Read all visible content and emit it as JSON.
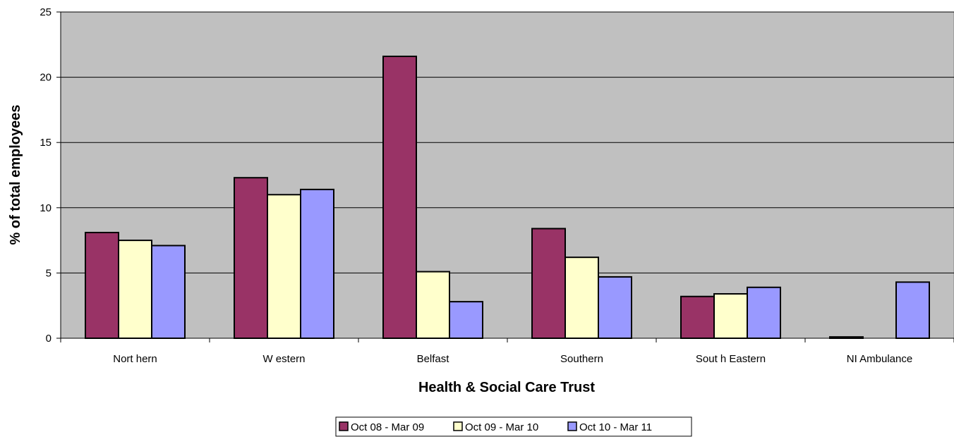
{
  "chart_data": {
    "type": "bar",
    "categories": [
      "Northern",
      "Western",
      "Belfast",
      "Southern",
      "South Eastern",
      "NI Ambulance"
    ],
    "category_labels": [
      "Nort hern",
      "W estern",
      "Belfast",
      "Southern",
      "Sout h Eastern",
      "NI Ambulance"
    ],
    "series": [
      {
        "name": "Oct 08 - Mar 09",
        "color": "#993366",
        "values": [
          8.1,
          12.3,
          21.6,
          8.4,
          3.2,
          0.1
        ]
      },
      {
        "name": "Oct 09 - Mar 10",
        "color": "#FFFFCC",
        "values": [
          7.5,
          11.0,
          5.1,
          6.2,
          3.4,
          0
        ]
      },
      {
        "name": "Oct 10 - Mar 11",
        "color": "#9999FF",
        "values": [
          7.1,
          11.4,
          2.8,
          4.7,
          3.9,
          4.3
        ]
      }
    ],
    "xlabel": "Health & Social Care Trust",
    "ylabel": "% of total employees",
    "ylim": [
      0,
      25
    ],
    "yticks": [
      0,
      5,
      10,
      15,
      20,
      25
    ],
    "grid": true,
    "plot_background": "#C0C0C0",
    "legend_position": "bottom"
  }
}
